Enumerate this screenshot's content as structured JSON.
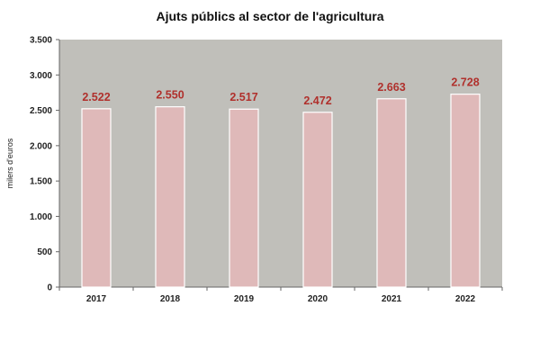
{
  "chart_data": {
    "type": "bar",
    "title": "Ajuts públics  al sector de l'agricultura",
    "xlabel": "",
    "ylabel": "milers d'euros",
    "categories": [
      "2017",
      "2018",
      "2019",
      "2020",
      "2021",
      "2022"
    ],
    "values": [
      2522,
      2550,
      2517,
      2472,
      2663,
      2728
    ],
    "data_labels": [
      "2.522",
      "2.550",
      "2.517",
      "2.472",
      "2.663",
      "2.728"
    ],
    "ylim": [
      0,
      3500
    ],
    "yticks": [
      0,
      500,
      1000,
      1500,
      2000,
      2500,
      3000,
      3500
    ],
    "ytick_labels": [
      "0",
      "500",
      "1.000",
      "1.500",
      "2.000",
      "2.500",
      "3.000",
      "3.500"
    ],
    "grid": false,
    "legend": "none",
    "colors": {
      "plot_bg": "#c0bfba",
      "bar": "#dfb9b9",
      "bar_edge": "#ffffff",
      "label": "#b0302c"
    }
  }
}
